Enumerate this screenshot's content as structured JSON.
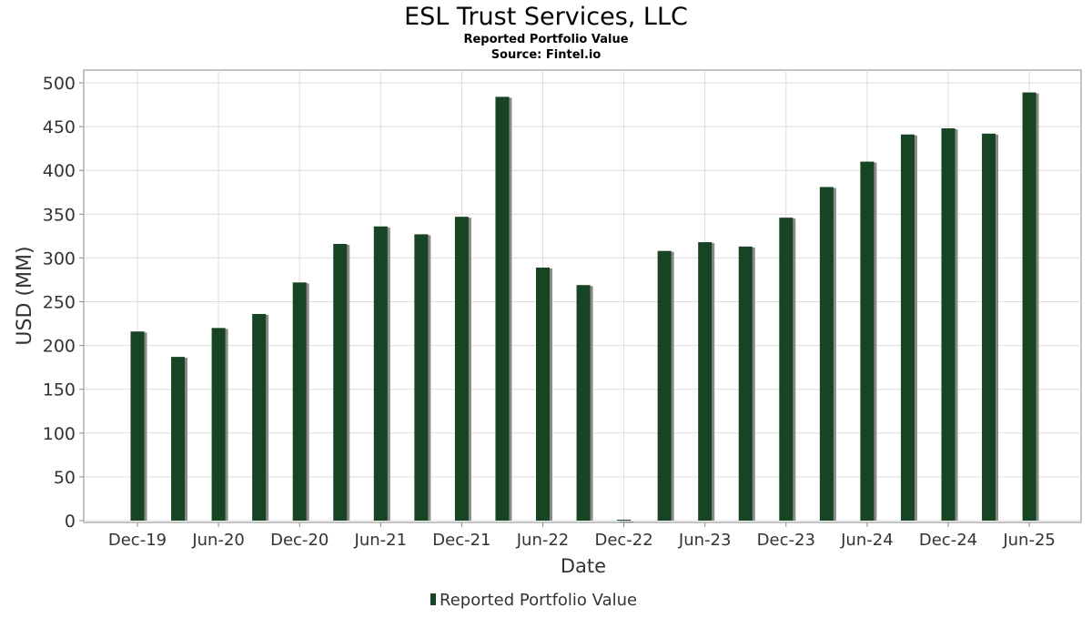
{
  "chart_data": {
    "type": "bar",
    "title": "ESL Trust Services, LLC",
    "subtitle": "Reported Portfolio Value",
    "source": "Source: Fintel.io",
    "xlabel": "Date",
    "ylabel": "USD (MM)",
    "ylim": [
      0,
      500
    ],
    "yticks": [
      0,
      50,
      100,
      150,
      200,
      250,
      300,
      350,
      400,
      450,
      500
    ],
    "grid": true,
    "legend_position": "bottom",
    "xtick_labels": [
      "Dec-19",
      "Jun-20",
      "Dec-20",
      "Jun-21",
      "Dec-21",
      "Jun-22",
      "Dec-22",
      "Jun-23",
      "Dec-23",
      "Jun-24",
      "Dec-24",
      "Jun-25"
    ],
    "categories": [
      "Dec-19",
      "Mar-20",
      "Jun-20",
      "Sep-20",
      "Dec-20",
      "Mar-21",
      "Jun-21",
      "Sep-21",
      "Dec-21",
      "Mar-22",
      "Jun-22",
      "Sep-22",
      "Dec-22",
      "Mar-23",
      "Jun-23",
      "Sep-23",
      "Dec-23",
      "Mar-24",
      "Jun-24",
      "Sep-24",
      "Dec-24",
      "Mar-25",
      "Jun-25"
    ],
    "series": [
      {
        "name": "Reported Portfolio Value",
        "color": "#174423",
        "values": [
          216,
          187,
          220,
          236,
          272,
          316,
          336,
          327,
          347,
          484,
          289,
          269,
          0,
          308,
          318,
          313,
          346,
          381,
          410,
          441,
          448,
          442,
          489
        ]
      }
    ]
  },
  "colors": {
    "bar": "#174423",
    "bar_shadow": "#8a8a8a",
    "grid": "#dddddd",
    "axis": "#888888",
    "text": "#333333"
  }
}
